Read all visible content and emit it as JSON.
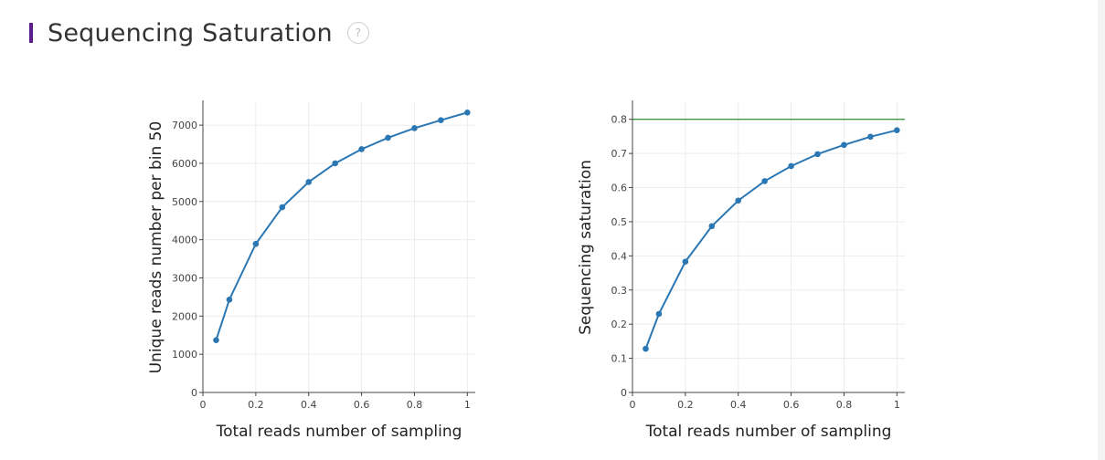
{
  "page": {
    "title": "Sequencing Saturation",
    "help_glyph": "?",
    "accent_color": "#5a1d8c"
  },
  "chart_data": [
    {
      "type": "line",
      "xlabel": "Total reads number of sampling",
      "ylabel": "Unique reads number per bin 50",
      "xlim": [
        0,
        1.03
      ],
      "ylim": [
        0,
        7600
      ],
      "xticks": [
        0,
        0.2,
        0.4,
        0.6,
        0.8,
        1
      ],
      "xtick_labels": [
        "0",
        "0.2",
        "0.4",
        "0.6",
        "0.8",
        "1"
      ],
      "yticks": [
        0,
        1000,
        2000,
        3000,
        4000,
        5000,
        6000,
        7000
      ],
      "ytick_labels": [
        "0",
        "1000",
        "2000",
        "3000",
        "4000",
        "5000",
        "6000",
        "7000"
      ],
      "grid": true,
      "series": [
        {
          "color": "#2a77b4",
          "x": [
            0.05,
            0.1,
            0.2,
            0.3,
            0.4,
            0.5,
            0.6,
            0.7,
            0.8,
            0.9,
            1.0
          ],
          "y": [
            1370,
            2430,
            3890,
            4850,
            5510,
            6000,
            6370,
            6670,
            6920,
            7130,
            7330
          ]
        }
      ]
    },
    {
      "type": "line",
      "xlabel": "Total reads number of sampling",
      "ylabel": "Sequencing saturation",
      "xlim": [
        0,
        1.03
      ],
      "ylim": [
        0,
        0.85
      ],
      "xticks": [
        0,
        0.2,
        0.4,
        0.6,
        0.8,
        1
      ],
      "xtick_labels": [
        "0",
        "0.2",
        "0.4",
        "0.6",
        "0.8",
        "1"
      ],
      "yticks": [
        0,
        0.1,
        0.2,
        0.3,
        0.4,
        0.5,
        0.6,
        0.7,
        0.8
      ],
      "ytick_labels": [
        "0",
        "0.1",
        "0.2",
        "0.3",
        "0.4",
        "0.5",
        "0.6",
        "0.7",
        "0.8"
      ],
      "grid": true,
      "reference_line": {
        "y": 0.8,
        "color": "#3c9a3c"
      },
      "series": [
        {
          "color": "#2a77b4",
          "x": [
            0.05,
            0.1,
            0.2,
            0.3,
            0.4,
            0.5,
            0.6,
            0.7,
            0.8,
            0.9,
            1.0
          ],
          "y": [
            0.128,
            0.23,
            0.383,
            0.487,
            0.562,
            0.619,
            0.663,
            0.698,
            0.725,
            0.749,
            0.768
          ]
        }
      ]
    }
  ]
}
